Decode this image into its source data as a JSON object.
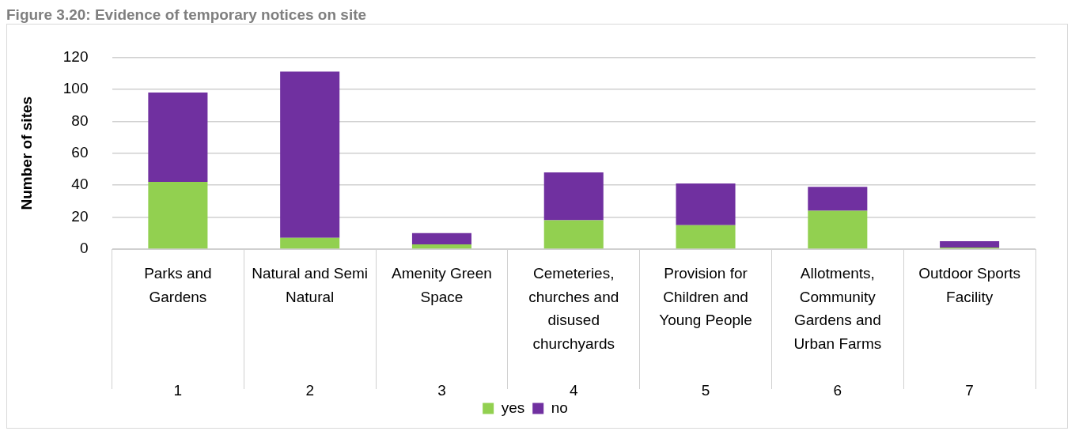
{
  "chart_data": {
    "type": "bar",
    "title": "Figure 3.20: Evidence of temporary notices on site",
    "ylabel": "Number of sites",
    "categories": [
      "Parks and Gardens",
      "Natural and Semi Natural",
      "Amenity Green Space",
      "Cemeteries, churches and disused churchyards",
      "Provision for Children and Young People",
      "Allotments, Community Gardens and Urban Farms",
      "Outdoor Sports Facility"
    ],
    "annotations": [
      "1",
      "2",
      "3",
      "4",
      "5",
      "6",
      "7"
    ],
    "series": [
      {
        "name": "yes",
        "color": "#92d050",
        "values": [
          42,
          7,
          3,
          18,
          15,
          24,
          1
        ]
      },
      {
        "name": "no",
        "color": "#7030a0",
        "values": [
          56,
          104,
          7,
          30,
          26,
          15,
          4
        ]
      }
    ],
    "stacked": true,
    "ylim": [
      0,
      120
    ],
    "yticks": [
      0,
      20,
      40,
      60,
      80,
      100,
      120
    ],
    "grid": "y",
    "legend": "bottom"
  }
}
